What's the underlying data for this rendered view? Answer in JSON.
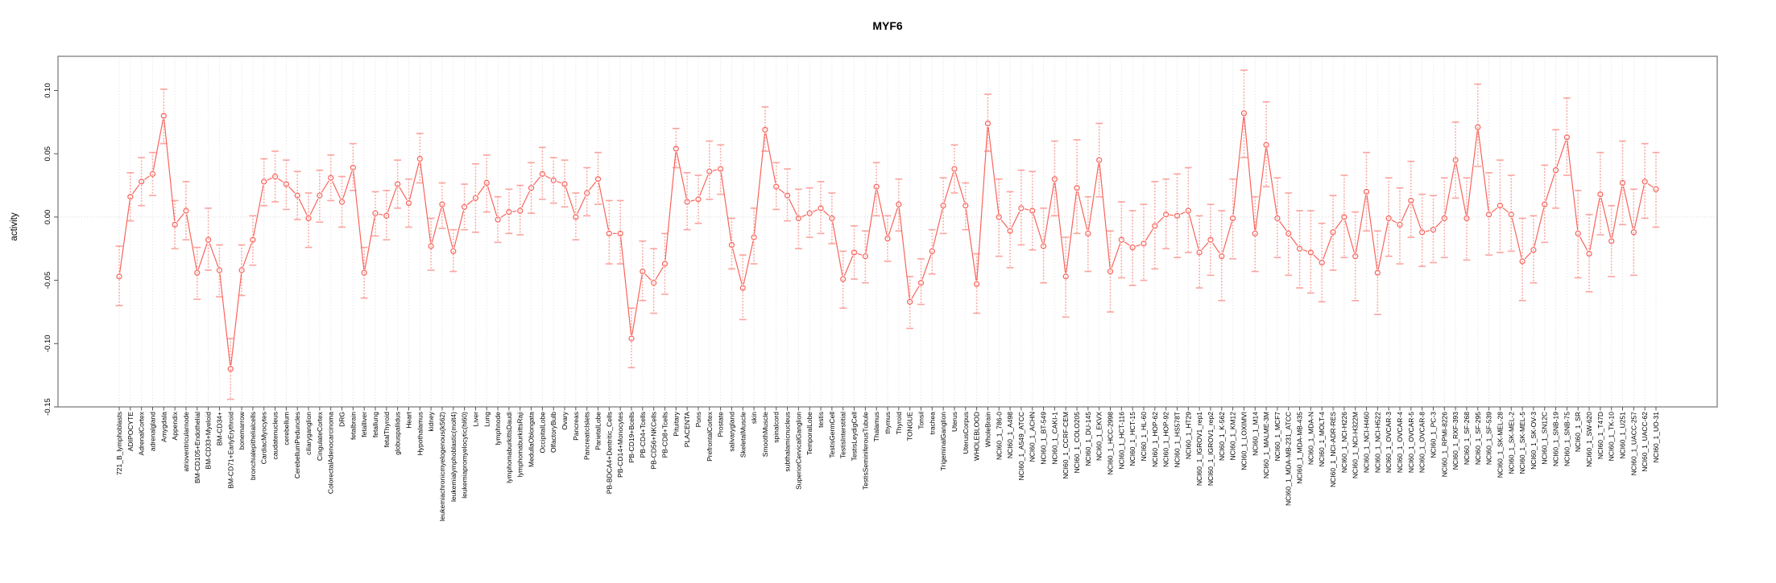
{
  "title": "MYF6",
  "ylabel": "activity",
  "chart_data": {
    "type": "line",
    "title": "MYF6",
    "xlabel": "",
    "ylabel": "activity",
    "legend_position": "none",
    "grid": "vertical dotted gridline per category; dotted horizontal line at 0",
    "marker": "open-circle",
    "error_bars": true,
    "ylim": [
      -0.15,
      0.127
    ],
    "yticks": [
      "0.10",
      "0.05",
      "0.00",
      "-0.05",
      "-0.10",
      "-0.15"
    ],
    "ytick_values": [
      0.1,
      0.05,
      0.0,
      -0.05,
      -0.1,
      -0.15
    ],
    "colors": {
      "series": "#f8645c",
      "error_bar": "#fba49e",
      "gridline": "#dcdcdc",
      "zero_line": "#cccccc",
      "frame": "#8f8f8f",
      "background": "#ffffff",
      "text": "#000000"
    },
    "categories": [
      "721_B_lymphoblasts",
      "ADIPOCYTE",
      "AdrenalCortex",
      "adrenalgland",
      "Amygdala",
      "Appendix",
      "atrioventricularnode",
      "BM-CD105+Endothelial",
      "BM-CD33+Myeloid",
      "BM-CD34+",
      "BM-CD71+EarlyErythroid",
      "bonemarrow",
      "bronchialepithelialcells",
      "CardiacMyocytes",
      "caudatenucleus",
      "cerebellum",
      "CerebellumPeduncles",
      "ciliaryganglion",
      "CingulateCortex",
      "ColorectalAdenocarcinoma",
      "DRG",
      "fetalbrain",
      "fetalliver",
      "fetallung",
      "fetalThyroid",
      "globuspallidus",
      "Heart",
      "Hypothalamus",
      "kidney",
      "leukemiachronicmyelogenous(k562)",
      "leukemialymphoblastic(molt4)",
      "leukemiapromyelocytic(hl60)",
      "Liver",
      "Lung",
      "lymphnode",
      "lymphomaburkittsDaudi",
      "lymphomaburkittsRaji",
      "MedullaOblongata",
      "OccipitalLobe",
      "OlfactoryBulb",
      "Ovary",
      "Pancreas",
      "PancreaticIslets",
      "ParietalLobe",
      "PB-BDCA4+Dentritic_Cells",
      "PB-CD14+Monocytes",
      "PB-CD19+Bcells",
      "PB-CD4+Tcells",
      "PB-CD56+NKCells",
      "PB-CD8+Tcells",
      "Pituitary",
      "PLACENTA",
      "Pons",
      "PrefrontalCortex",
      "Prostate",
      "salivarygland",
      "SkeletalMuscle",
      "skin",
      "SmoothMuscle",
      "spinalcord",
      "subthalamicnucleus",
      "SuperiorCervicalGanglion",
      "TemporalLobe",
      "testis",
      "TestisGermCell",
      "TestisInterstitial",
      "TestisLeydigCell",
      "TestisSeminiferousTubule",
      "Thalamus",
      "thymus",
      "Thyroid",
      "TONGUE",
      "Tonsil",
      "trachea",
      "TrigeminalGanglion",
      "Uterus",
      "UterusCorpus",
      "WHOLEBLOOD",
      "WholeBrain",
      "NCI60_1_786-0",
      "NCI60_1_A498",
      "NCI60_1_A549_ATCC",
      "NCI60_1_ACHN",
      "NCI60_1_BT-549",
      "NCI60_1_CAKI-1",
      "NCI60_1_CCRF-CEM",
      "NCI60_1_COLO205",
      "NCI60_1_DU-145",
      "NCI60_1_EKVX",
      "NCI60_1_HCC-2998",
      "NCI60_1_HCT-116",
      "NCI60_1_HCT-15",
      "NCI60_1_HL-60",
      "NCI60_1_HOP-62",
      "NCI60_1_HOP-92",
      "NCI60_1_HS578T",
      "NCI60_1_HT29",
      "NCI60_1_IGROV1_rep1",
      "NCI60_1_IGROV1_rep2",
      "NCI60_1_K-562",
      "NCI60_1_KM12",
      "NCI60_1_LOXIMVI",
      "NCI60_1_M14",
      "NCI60_1_MALME-3M",
      "NCI60_1_MCF7",
      "NCI60_1_MDA-MB-231_ATCC",
      "NCI60_1_MDA-MB-435",
      "NCI60_1_MDA-N",
      "NCI60_1_MOLT-4",
      "NCI60_1_NCI-ADR-RES",
      "NCI60_1_NCI-H226",
      "NCI60_1_NCI-H322M",
      "NCI60_1_NCI-H460",
      "NCI60_1_NCI-H522",
      "NCI60_1_OVCAR-3",
      "NCI60_1_OVCAR-4",
      "NCI60_1_OVCAR-5",
      "NCI60_1_OVCAR-8",
      "NCI60_1_PC-3",
      "NCI60_1_RPMI-8226",
      "NCI60_1_RXF-393",
      "NCI60_1_SF-268",
      "NCI60_1_SF-295",
      "NCI60_1_SF-539",
      "NCI60_1_SK-MEL-28",
      "NCI60_1_SK-MEL-2",
      "NCI60_1_SK-MEL-5",
      "NCI60_1_SK-OV-3",
      "NCI60_1_SN12C",
      "NCI60_1_SNB-19",
      "NCI60_1_SNB-75",
      "NCI60_1_SR",
      "NCI60_1_SW-620",
      "NCI60_1_T47D",
      "NCI60_1_TK-10",
      "NCI60_1_U251",
      "NCI60_1_UACC-257",
      "NCI60_1_UACC-62",
      "NCI60_1_UO-31"
    ],
    "values": [
      -0.047,
      0.016,
      0.028,
      0.034,
      0.08,
      -0.006,
      0.005,
      -0.044,
      -0.018,
      -0.042,
      -0.12,
      -0.042,
      -0.018,
      0.028,
      0.032,
      0.026,
      0.017,
      -0.001,
      0.017,
      0.031,
      0.012,
      0.039,
      -0.044,
      0.003,
      0.001,
      0.026,
      0.011,
      0.046,
      -0.023,
      0.01,
      -0.027,
      0.008,
      0.015,
      0.027,
      -0.002,
      0.004,
      0.005,
      0.023,
      0.034,
      0.029,
      0.026,
      0.0,
      0.019,
      0.03,
      -0.013,
      -0.013,
      -0.096,
      -0.043,
      -0.052,
      -0.037,
      0.054,
      0.012,
      0.014,
      0.036,
      0.038,
      -0.022,
      -0.056,
      -0.016,
      0.069,
      0.024,
      0.017,
      -0.001,
      0.003,
      0.007,
      -0.001,
      -0.049,
      -0.028,
      -0.031,
      0.024,
      -0.017,
      0.01,
      -0.067,
      -0.052,
      -0.027,
      0.009,
      0.038,
      0.009,
      -0.053,
      0.074,
      0.0,
      -0.011,
      0.007,
      0.005,
      -0.023,
      0.03,
      -0.047,
      0.023,
      -0.013,
      0.045,
      -0.043,
      -0.018,
      -0.024,
      -0.021,
      -0.007,
      0.002,
      0.001,
      0.005,
      -0.028,
      -0.018,
      -0.031,
      -0.001,
      0.082,
      -0.013,
      0.057,
      -0.001,
      -0.013,
      -0.025,
      -0.028,
      -0.036,
      -0.012,
      0.0,
      -0.031,
      0.02,
      -0.044,
      -0.001,
      -0.006,
      0.013,
      -0.012,
      -0.01,
      -0.001,
      0.045,
      -0.001,
      0.071,
      0.002,
      0.009,
      0.002,
      -0.035,
      -0.026,
      0.01,
      0.037,
      0.063,
      -0.013,
      -0.029,
      0.018,
      -0.019,
      0.027,
      -0.012,
      0.028,
      0.022
    ],
    "err_hi": [
      -0.023,
      0.035,
      0.047,
      0.051,
      0.101,
      0.013,
      0.028,
      -0.024,
      0.007,
      -0.022,
      -0.096,
      -0.022,
      0.001,
      0.046,
      0.052,
      0.045,
      0.036,
      0.019,
      0.037,
      0.049,
      0.032,
      0.058,
      -0.024,
      0.02,
      0.021,
      0.045,
      0.03,
      0.066,
      -0.001,
      0.027,
      -0.01,
      0.026,
      0.042,
      0.049,
      0.016,
      0.022,
      0.025,
      0.043,
      0.055,
      0.047,
      0.045,
      0.019,
      0.039,
      0.051,
      0.013,
      0.013,
      -0.072,
      -0.019,
      -0.025,
      -0.013,
      0.07,
      0.035,
      0.033,
      0.06,
      0.057,
      -0.001,
      -0.03,
      0.007,
      0.087,
      0.043,
      0.038,
      0.022,
      0.023,
      0.028,
      0.019,
      -0.027,
      -0.007,
      -0.011,
      0.043,
      0.001,
      0.03,
      -0.047,
      -0.033,
      -0.01,
      0.031,
      0.057,
      0.027,
      -0.029,
      0.097,
      0.03,
      0.02,
      0.037,
      0.036,
      0.007,
      0.06,
      -0.016,
      0.061,
      0.016,
      0.074,
      -0.011,
      0.012,
      0.005,
      0.01,
      0.028,
      0.03,
      0.034,
      0.039,
      0.001,
      0.01,
      0.005,
      0.03,
      0.116,
      0.016,
      0.091,
      0.031,
      0.019,
      0.005,
      0.005,
      -0.005,
      0.017,
      0.033,
      0.004,
      0.051,
      -0.011,
      0.031,
      0.023,
      0.044,
      0.018,
      0.017,
      0.031,
      0.075,
      0.031,
      0.105,
      0.035,
      0.045,
      0.033,
      -0.001,
      0.001,
      0.041,
      0.069,
      0.094,
      0.021,
      0.002,
      0.051,
      0.009,
      0.06,
      0.022,
      0.058,
      0.051
    ],
    "err_lo": [
      -0.07,
      -0.003,
      0.009,
      0.017,
      0.058,
      -0.025,
      -0.018,
      -0.065,
      -0.042,
      -0.063,
      -0.144,
      -0.062,
      -0.038,
      0.009,
      0.012,
      0.006,
      -0.002,
      -0.024,
      -0.004,
      0.013,
      -0.008,
      0.021,
      -0.064,
      -0.015,
      -0.018,
      0.007,
      -0.008,
      0.027,
      -0.042,
      -0.009,
      -0.043,
      -0.01,
      -0.012,
      0.004,
      -0.02,
      -0.013,
      -0.014,
      0.003,
      0.014,
      0.011,
      0.008,
      -0.018,
      0.001,
      0.01,
      -0.037,
      -0.037,
      -0.119,
      -0.066,
      -0.076,
      -0.061,
      0.039,
      -0.01,
      -0.005,
      0.014,
      0.018,
      -0.041,
      -0.081,
      -0.037,
      0.052,
      0.006,
      -0.003,
      -0.025,
      -0.016,
      -0.013,
      -0.021,
      -0.072,
      -0.049,
      -0.052,
      0.001,
      -0.035,
      -0.011,
      -0.088,
      -0.069,
      -0.045,
      -0.013,
      0.019,
      -0.01,
      -0.076,
      0.052,
      -0.031,
      -0.04,
      -0.022,
      -0.026,
      -0.052,
      0.001,
      -0.079,
      -0.013,
      -0.043,
      0.016,
      -0.075,
      -0.048,
      -0.054,
      -0.05,
      -0.041,
      -0.025,
      -0.032,
      -0.028,
      -0.056,
      -0.046,
      -0.066,
      -0.033,
      0.047,
      -0.043,
      0.024,
      -0.032,
      -0.046,
      -0.056,
      -0.06,
      -0.067,
      -0.042,
      -0.032,
      -0.066,
      -0.011,
      -0.077,
      -0.031,
      -0.037,
      -0.016,
      -0.039,
      -0.036,
      -0.032,
      0.015,
      -0.034,
      0.04,
      -0.03,
      -0.028,
      -0.027,
      -0.066,
      -0.052,
      -0.02,
      0.007,
      0.033,
      -0.048,
      -0.059,
      -0.014,
      -0.047,
      -0.006,
      -0.046,
      -0.001,
      -0.008
    ]
  }
}
